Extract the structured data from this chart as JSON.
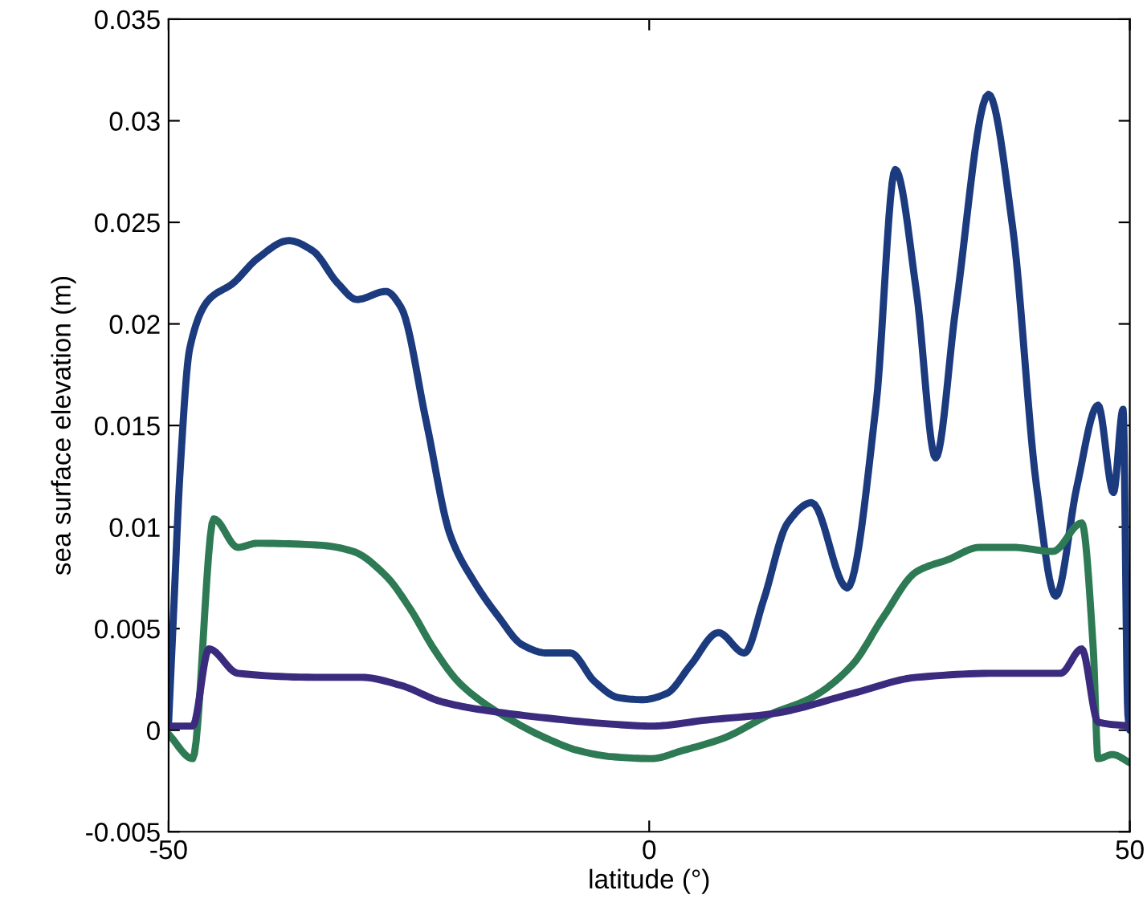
{
  "chart_data": {
    "type": "line",
    "xlabel": "latitude (°)",
    "ylabel": "sea surface elevation (m)",
    "xlim": [
      -50,
      50
    ],
    "xticks": [
      -50,
      0,
      50
    ],
    "ylim": [
      -0.005,
      0.035
    ],
    "yticks": [
      -0.005,
      0,
      0.005,
      0.01,
      0.015,
      0.02,
      0.025,
      0.03,
      0.035
    ],
    "grid": false,
    "marker": "none",
    "line_style": "solid",
    "series": [
      {
        "color": "#1c3a7e",
        "x": [
          -50,
          -49.5,
          -48.8,
          -47.8,
          -45.8,
          -43.3,
          -40.8,
          -37.5,
          -35,
          -32.4,
          -30.4,
          -27.4,
          -25.8,
          -23.2,
          -20.7,
          -18.2,
          -15.7,
          -13.2,
          -10.7,
          -8.2,
          -5.7,
          -3.2,
          -0.7,
          1.8,
          4.3,
          7.2,
          9.9,
          11.9,
          14.4,
          16.9,
          20.6,
          23.6,
          25.6,
          27.8,
          29.8,
          31.9,
          35.3,
          37.8,
          40.3,
          42.3,
          44.5,
          46.7,
          48.3,
          49.3,
          49.8,
          50
        ],
        "values": [
          0.0004,
          0.0056,
          0.0128,
          0.0188,
          0.0212,
          0.022,
          0.0232,
          0.0241,
          0.0236,
          0.022,
          0.0212,
          0.0216,
          0.0208,
          0.0152,
          0.0096,
          0.0073,
          0.0056,
          0.0042,
          0.0038,
          0.0038,
          0.0024,
          0.0016,
          0.0015,
          0.0018,
          0.0032,
          0.0048,
          0.0038,
          0.0064,
          0.0102,
          0.0112,
          0.007,
          0.016,
          0.0276,
          0.0216,
          0.0134,
          0.0208,
          0.0313,
          0.0248,
          0.012,
          0.0066,
          0.012,
          0.016,
          0.0117,
          0.0158,
          0.0008,
          0.0
        ]
      },
      {
        "color": "#2e7a55",
        "x": [
          -50,
          -47.5,
          -45.3,
          -42.8,
          -40.8,
          -34.1,
          -30.8,
          -27.4,
          -24.9,
          -22.4,
          -19.9,
          -17.4,
          -14,
          -10.7,
          -7.4,
          -4,
          0.2,
          3.5,
          7.7,
          12.7,
          16.9,
          21.1,
          24.4,
          27.8,
          31.1,
          34.4,
          37.8,
          42,
          45,
          46.2,
          46.7,
          48.2,
          50
        ],
        "values": [
          -0.0002,
          -0.0014,
          0.0104,
          0.009,
          0.0092,
          0.0091,
          0.0088,
          0.0076,
          0.006,
          0.004,
          0.0024,
          0.0014,
          0.0004,
          -0.0004,
          -0.001,
          -0.0013,
          -0.0014,
          -0.001,
          -0.0004,
          0.0008,
          0.0016,
          0.0032,
          0.0056,
          0.0078,
          0.0084,
          0.009,
          0.009,
          0.0088,
          0.0102,
          0.004,
          -0.0014,
          -0.0012,
          -0.0016
        ]
      },
      {
        "color": "#3b2b7e",
        "x": [
          -50,
          -47.5,
          -45.8,
          -42.8,
          -34.1,
          -29.9,
          -25.8,
          -21.6,
          -17.4,
          -10.7,
          -4,
          0.2,
          6,
          12.7,
          21.1,
          27.8,
          36.1,
          42.8,
          45,
          46.7,
          50
        ],
        "values": [
          0.0002,
          0.0002,
          0.004,
          0.0028,
          0.0026,
          0.0026,
          0.0022,
          0.0014,
          0.001,
          0.0006,
          0.0003,
          0.0002,
          0.0005,
          0.0008,
          0.0018,
          0.0026,
          0.0028,
          0.0028,
          0.004,
          0.0004,
          0.0002
        ]
      }
    ]
  }
}
